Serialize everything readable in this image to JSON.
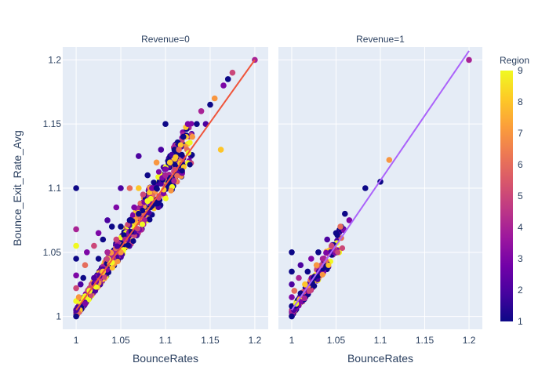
{
  "chart_data": {
    "type": "scatter",
    "xlabel": "BounceRates",
    "ylabel": "Bounce_Exit_Rate_Avg",
    "colorbar": {
      "title": "Region",
      "min": 1,
      "max": 9,
      "ticks": [
        "1",
        "2",
        "3",
        "4",
        "5",
        "6",
        "7",
        "8",
        "9"
      ]
    },
    "xlim": [
      0.985,
      1.215
    ],
    "ylim": [
      0.99,
      1.21
    ],
    "xticks": [
      1,
      1.05,
      1.1,
      1.15,
      1.2
    ],
    "xtick_labels": [
      "1",
      "1.05",
      "1.1",
      "1.15",
      "1.2"
    ],
    "yticks": [
      1,
      1.05,
      1.1,
      1.15,
      1.2
    ],
    "ytick_labels": [
      "1",
      "1.05",
      "1.1",
      "1.15",
      "1.2"
    ],
    "colors": {
      "plot_bg": "#e5ecf6",
      "grid": "#ffffff",
      "trend_revenue_0": "#ef553b",
      "trend_revenue_1": "#ab63fa",
      "colorscale": [
        "#0d0887",
        "#46039f",
        "#7201a8",
        "#9c179e",
        "#bd3786",
        "#d8576b",
        "#ed7953",
        "#fb9f3a",
        "#fdca26",
        "#f0f921"
      ]
    },
    "facets": [
      {
        "title": "Revenue=0",
        "trendline": [
          [
            1.0,
            1.005
          ],
          [
            1.2,
            1.2
          ]
        ],
        "points": [
          [
            1.0,
            1.0,
            1
          ],
          [
            1.0,
            1.005,
            2
          ],
          [
            1.0,
            1.012,
            9
          ],
          [
            1.0,
            1.022,
            5
          ],
          [
            1.0,
            1.032,
            3
          ],
          [
            1.0,
            1.045,
            1
          ],
          [
            1.0,
            1.055,
            9
          ],
          [
            1.0,
            1.068,
            4
          ],
          [
            1.0,
            1.1,
            1
          ],
          [
            1.003,
            1.015,
            7
          ],
          [
            1.005,
            1.025,
            2
          ],
          [
            1.008,
            1.03,
            1
          ],
          [
            1.01,
            1.04,
            6
          ],
          [
            1.012,
            1.05,
            3
          ],
          [
            1.015,
            1.02,
            9
          ],
          [
            1.02,
            1.03,
            2
          ],
          [
            1.02,
            1.055,
            5
          ],
          [
            1.025,
            1.045,
            1
          ],
          [
            1.025,
            1.065,
            3
          ],
          [
            1.03,
            1.035,
            8
          ],
          [
            1.03,
            1.06,
            1
          ],
          [
            1.035,
            1.05,
            4
          ],
          [
            1.035,
            1.075,
            2
          ],
          [
            1.04,
            1.042,
            9
          ],
          [
            1.04,
            1.07,
            1
          ],
          [
            1.045,
            1.06,
            5
          ],
          [
            1.045,
            1.085,
            3
          ],
          [
            1.05,
            1.05,
            7
          ],
          [
            1.05,
            1.07,
            1
          ],
          [
            1.05,
            1.1,
            2
          ],
          [
            1.055,
            1.06,
            4
          ],
          [
            1.06,
            1.075,
            1
          ],
          [
            1.06,
            1.1,
            6
          ],
          [
            1.065,
            1.085,
            3
          ],
          [
            1.07,
            1.08,
            1
          ],
          [
            1.07,
            1.1,
            8
          ],
          [
            1.07,
            1.125,
            2
          ],
          [
            1.075,
            1.095,
            5
          ],
          [
            1.08,
            1.11,
            1
          ],
          [
            1.08,
            1.09,
            9
          ],
          [
            1.085,
            1.1,
            3
          ],
          [
            1.09,
            1.12,
            7
          ],
          [
            1.09,
            1.1,
            1
          ],
          [
            1.095,
            1.13,
            2
          ],
          [
            1.1,
            1.15,
            1
          ],
          [
            1.1,
            1.11,
            4
          ],
          [
            1.105,
            1.12,
            8
          ],
          [
            1.11,
            1.13,
            1
          ],
          [
            1.115,
            1.13,
            6
          ],
          [
            1.12,
            1.14,
            1
          ],
          [
            1.125,
            1.15,
            3
          ],
          [
            1.13,
            1.14,
            7
          ],
          [
            1.135,
            1.15,
            1
          ],
          [
            1.14,
            1.16,
            4
          ],
          [
            1.145,
            1.15,
            2
          ],
          [
            1.15,
            1.165,
            1
          ],
          [
            1.155,
            1.17,
            7
          ],
          [
            1.162,
            1.13,
            8
          ],
          [
            1.165,
            1.18,
            3
          ],
          [
            1.17,
            1.185,
            1
          ],
          [
            1.175,
            1.19,
            5
          ],
          [
            1.2,
            1.2,
            4
          ]
        ]
      },
      {
        "title": "Revenue=1",
        "trendline": [
          [
            1.0,
            1.005
          ],
          [
            1.2,
            1.207
          ]
        ],
        "points": [
          [
            1.0,
            1.0,
            1
          ],
          [
            1.0,
            1.008,
            1
          ],
          [
            1.0,
            1.015,
            3
          ],
          [
            1.0,
            1.025,
            2
          ],
          [
            1.0,
            1.035,
            1
          ],
          [
            1.0,
            1.05,
            1
          ],
          [
            1.003,
            1.02,
            6
          ],
          [
            1.005,
            1.01,
            9
          ],
          [
            1.008,
            1.03,
            4
          ],
          [
            1.01,
            1.018,
            1
          ],
          [
            1.01,
            1.04,
            2
          ],
          [
            1.015,
            1.025,
            8
          ],
          [
            1.018,
            1.035,
            1
          ],
          [
            1.02,
            1.02,
            5
          ],
          [
            1.022,
            1.045,
            3
          ],
          [
            1.025,
            1.03,
            1
          ],
          [
            1.028,
            1.04,
            7
          ],
          [
            1.03,
            1.05,
            1
          ],
          [
            1.035,
            1.045,
            4
          ],
          [
            1.04,
            1.06,
            2
          ],
          [
            1.045,
            1.055,
            5
          ],
          [
            1.05,
            1.065,
            1
          ],
          [
            1.055,
            1.07,
            6
          ],
          [
            1.06,
            1.08,
            1
          ],
          [
            1.065,
            1.075,
            3
          ],
          [
            1.083,
            1.1,
            1
          ],
          [
            1.1,
            1.105,
            1
          ],
          [
            1.11,
            1.122,
            7
          ],
          [
            1.2,
            1.2,
            4
          ]
        ]
      }
    ]
  }
}
